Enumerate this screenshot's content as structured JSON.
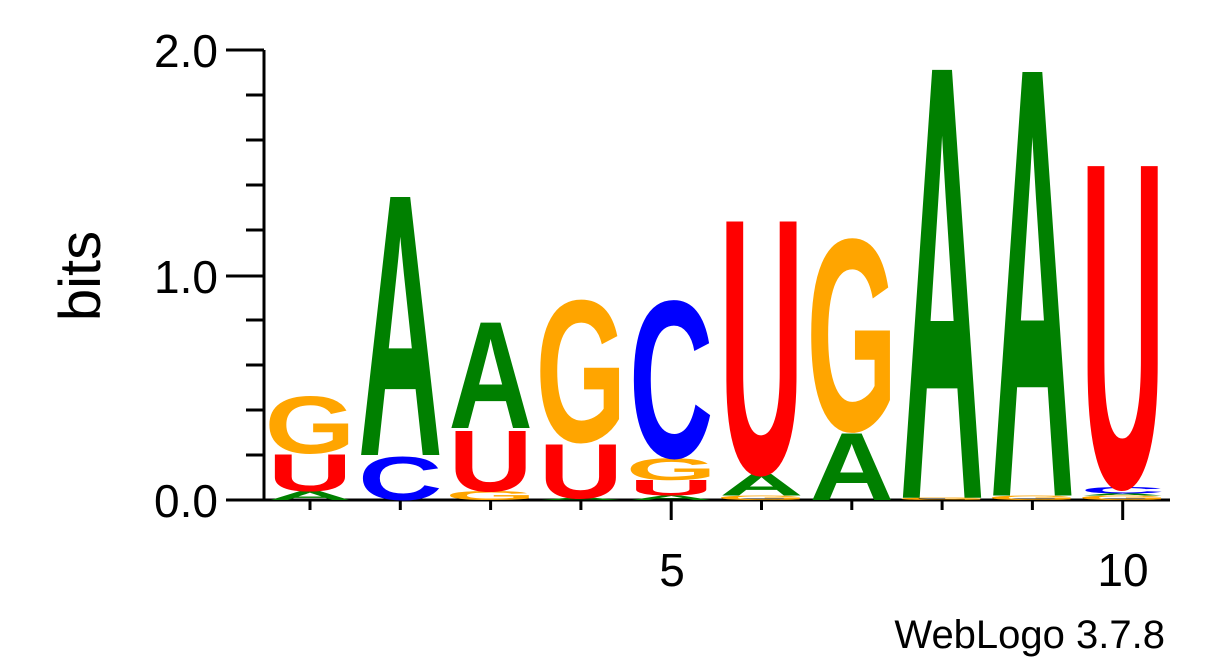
{
  "chart_data": {
    "type": "sequence-logo",
    "ylabel": "bits",
    "ylim": [
      0,
      2.0
    ],
    "y_ticks": [
      "0.0",
      "1.0",
      "2.0"
    ],
    "x_ticks": [
      "5",
      "10"
    ],
    "footer": "WebLogo 3.7.8",
    "colors": {
      "A": "#008000",
      "C": "#0000ff",
      "G": "#ffa500",
      "U": "#ff0000"
    },
    "positions": [
      {
        "pos": 1,
        "stack": [
          [
            "A",
            0.04
          ],
          [
            "U",
            0.17
          ],
          [
            "G",
            0.26
          ]
        ]
      },
      {
        "pos": 2,
        "stack": [
          [
            "C",
            0.2
          ],
          [
            "A",
            1.2
          ]
        ]
      },
      {
        "pos": 3,
        "stack": [
          [
            "G",
            0.04
          ],
          [
            "U",
            0.28
          ],
          [
            "A",
            0.49
          ]
        ]
      },
      {
        "pos": 4,
        "stack": [
          [
            "A",
            0.01
          ],
          [
            "U",
            0.25
          ],
          [
            "G",
            0.65
          ]
        ]
      },
      {
        "pos": 5,
        "stack": [
          [
            "A",
            0.02
          ],
          [
            "U",
            0.07
          ],
          [
            "G",
            0.1
          ],
          [
            "C",
            0.72
          ]
        ]
      },
      {
        "pos": 6,
        "stack": [
          [
            "G",
            0.02
          ],
          [
            "A",
            0.1
          ],
          [
            "U",
            1.17
          ]
        ]
      },
      {
        "pos": 7,
        "stack": [
          [
            "A",
            0.31
          ],
          [
            "G",
            0.88
          ]
        ]
      },
      {
        "pos": 8,
        "stack": [
          [
            "G",
            0.01
          ],
          [
            "A",
            1.99
          ]
        ]
      },
      {
        "pos": 9,
        "stack": [
          [
            "G",
            0.02
          ],
          [
            "A",
            1.97
          ]
        ]
      },
      {
        "pos": 10,
        "stack": [
          [
            "G",
            0.02
          ],
          [
            "A",
            0.01
          ],
          [
            "C",
            0.03
          ],
          [
            "U",
            1.49
          ]
        ]
      }
    ]
  }
}
